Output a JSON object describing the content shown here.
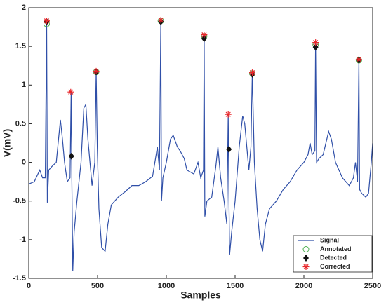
{
  "chart_data": {
    "type": "line",
    "xlabel": "Samples",
    "ylabel": "V(mV)",
    "xlim": [
      0,
      2500
    ],
    "xticks": [
      0,
      500,
      1000,
      1500,
      2000,
      2500
    ],
    "ylim": [
      -1.5,
      2
    ],
    "yticks": [
      -1.5,
      -1,
      -0.5,
      0,
      0.5,
      1,
      1.5,
      2
    ],
    "legend": "lower right",
    "series": [
      {
        "name": "Signal",
        "color": "#2f4fa8",
        "mode": "line",
        "x": [
          0,
          40,
          80,
          100,
          120,
          130,
          135,
          145,
          170,
          200,
          230,
          245,
          260,
          280,
          300,
          308,
          313,
          320,
          330,
          350,
          380,
          400,
          415,
          430,
          460,
          480,
          490,
          498,
          510,
          530,
          555,
          575,
          600,
          650,
          700,
          750,
          800,
          850,
          900,
          935,
          950,
          960,
          965,
          975,
          1000,
          1030,
          1050,
          1080,
          1100,
          1130,
          1150,
          1200,
          1230,
          1250,
          1270,
          1275,
          1280,
          1295,
          1330,
          1360,
          1375,
          1395,
          1420,
          1440,
          1450,
          1455,
          1460,
          1475,
          1500,
          1530,
          1555,
          1570,
          1600,
          1615,
          1625,
          1640,
          1660,
          1680,
          1700,
          1720,
          1750,
          1800,
          1850,
          1900,
          1950,
          2000,
          2030,
          2045,
          2060,
          2080,
          2085,
          2092,
          2110,
          2140,
          2180,
          2200,
          2230,
          2280,
          2330,
          2360,
          2375,
          2390,
          2400,
          2405,
          2420,
          2450,
          2470,
          2490,
          2500
        ],
        "values": [
          -0.28,
          -0.25,
          -0.1,
          -0.2,
          -0.2,
          1.83,
          -0.52,
          -0.1,
          -0.05,
          0.0,
          0.55,
          0.3,
          0.0,
          -0.25,
          -0.2,
          0.9,
          -0.2,
          -1.4,
          -0.9,
          -0.5,
          0.0,
          0.7,
          0.75,
          0.3,
          -0.3,
          0.0,
          1.18,
          0.2,
          -0.6,
          -1.1,
          -1.15,
          -0.8,
          -0.55,
          -0.45,
          -0.38,
          -0.3,
          -0.3,
          -0.25,
          -0.18,
          0.2,
          -0.1,
          1.84,
          -0.5,
          -0.2,
          0.0,
          0.3,
          0.35,
          0.2,
          0.15,
          0.05,
          -0.1,
          -0.15,
          0.0,
          -0.2,
          -0.1,
          1.65,
          -0.7,
          -0.5,
          -0.45,
          -0.05,
          0.2,
          -0.2,
          -0.5,
          -0.8,
          0.62,
          -0.4,
          -1.2,
          -0.9,
          -0.5,
          0.2,
          0.6,
          0.5,
          -0.1,
          0.2,
          1.16,
          0.0,
          -0.6,
          -1.0,
          -1.15,
          -0.8,
          -0.6,
          -0.5,
          -0.35,
          -0.25,
          -0.1,
          0.0,
          0.1,
          0.25,
          0.1,
          0.15,
          1.54,
          0.0,
          0.05,
          0.1,
          0.4,
          0.3,
          0.0,
          -0.2,
          -0.3,
          -0.2,
          0.0,
          -0.25,
          1.33,
          -0.35,
          -0.4,
          -0.45,
          -0.4,
          0.0,
          0.25
        ]
      },
      {
        "name": "Annotated",
        "color": "#4caf50",
        "mode": "circle",
        "x": [
          130,
          490,
          960,
          1275,
          1625,
          2085,
          2400
        ],
        "values": [
          1.79,
          1.17,
          1.83,
          1.63,
          1.15,
          1.52,
          1.32
        ]
      },
      {
        "name": "Detected",
        "color": "#111111",
        "mode": "diamond",
        "x": [
          130,
          310,
          490,
          960,
          1275,
          1455,
          1625,
          2085,
          2400
        ],
        "values": [
          1.82,
          0.08,
          1.17,
          1.82,
          1.6,
          0.17,
          1.14,
          1.49,
          1.32
        ]
      },
      {
        "name": "Corrected",
        "color": "#e8262a",
        "mode": "star",
        "x": [
          130,
          305,
          490,
          960,
          1275,
          1450,
          1625,
          2085,
          2400
        ],
        "values": [
          1.83,
          0.91,
          1.18,
          1.84,
          1.65,
          0.62,
          1.16,
          1.55,
          1.33
        ]
      }
    ]
  }
}
